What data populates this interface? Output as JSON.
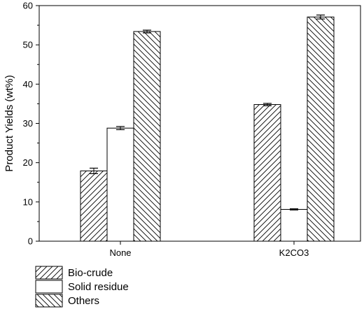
{
  "chart_data": {
    "type": "bar",
    "categories": [
      "None",
      "K2CO3"
    ],
    "series": [
      {
        "name": "Bio-crude",
        "values": [
          17.9,
          34.8
        ],
        "errors": [
          0.7,
          0.3
        ],
        "pattern": "forward-hatch"
      },
      {
        "name": "Solid residue",
        "values": [
          28.8,
          8.1
        ],
        "errors": [
          0.4,
          0.15
        ],
        "pattern": "none"
      },
      {
        "name": "Others",
        "values": [
          53.4,
          57.1
        ],
        "errors": [
          0.35,
          0.5
        ],
        "pattern": "back-hatch"
      }
    ],
    "title": "",
    "xlabel": "",
    "ylabel": "Product Yields (wt%)",
    "ylim": [
      0,
      60
    ],
    "yticks": [
      0,
      10,
      20,
      30,
      40,
      50,
      60
    ],
    "grid": false,
    "legend_position": "bottom-left",
    "colors": {
      "bar_stroke": "#000000",
      "bar_fill": "#ffffff"
    }
  }
}
